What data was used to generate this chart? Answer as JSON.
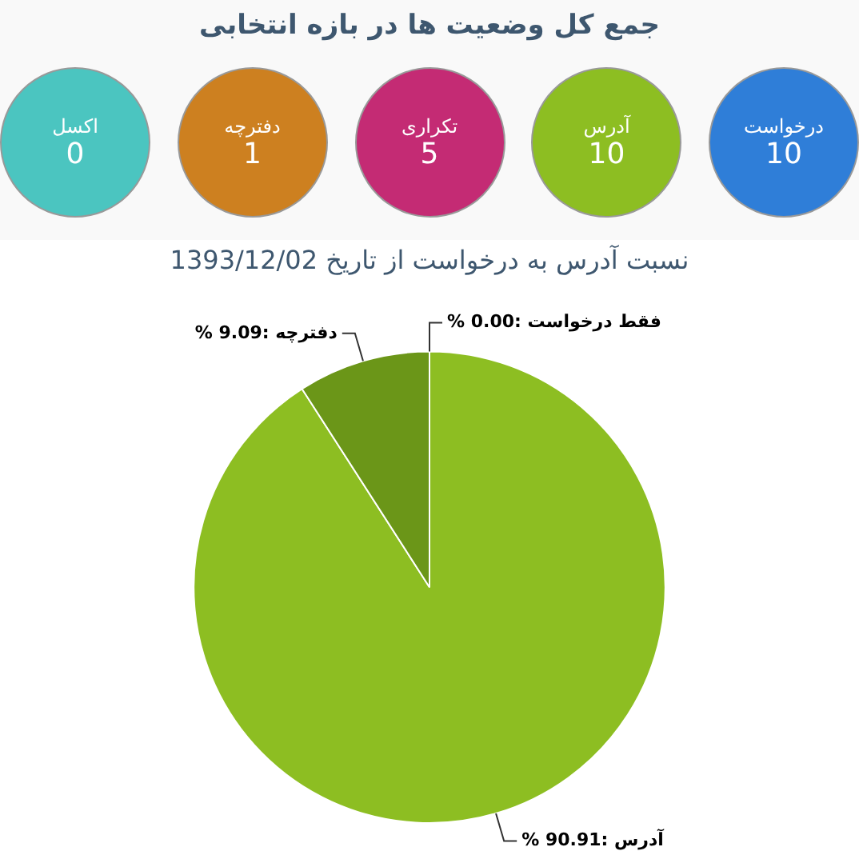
{
  "chart_data": [
    {
      "type": "other",
      "title": "جمع کل وضعیت ها در بازه انتخابی",
      "categories": [
        "اکسل",
        "دفترچه",
        "تکراری",
        "آدرس",
        "درخواست"
      ],
      "values": [
        0,
        1,
        5,
        10,
        10
      ],
      "colors": [
        "#4bc5c0",
        "#cd8020",
        "#c42b74",
        "#8dbe22",
        "#2f7ed8"
      ],
      "data_labels": true
    },
    {
      "type": "pie",
      "title": "نسبت آدرس به درخواست از تاریخ 1393/12/02",
      "categories": [
        "فقط درخواست",
        "آدرس",
        "دفترچه"
      ],
      "values": [
        0,
        90.91,
        9.09
      ],
      "colors": [
        "#a4d13a",
        "#8dbe22",
        "#6b9618"
      ],
      "value_labels": [
        ":0.00 %",
        ":90.91 %",
        ":9.09 %"
      ],
      "legend": false
    }
  ]
}
